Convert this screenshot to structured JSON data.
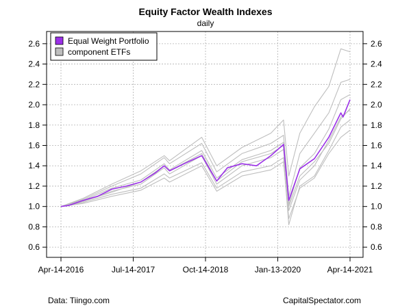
{
  "chart_data": {
    "type": "line",
    "title": "Equity Factor Wealth Indexes",
    "subtitle": "daily",
    "xlabel": "",
    "ylabel": "",
    "x_ticks": [
      "Apr-14-2016",
      "Jul-14-2017",
      "Oct-14-2018",
      "Jan-13-2020",
      "Apr-14-2021"
    ],
    "y_ticks": [
      0.6,
      0.8,
      1.0,
      1.2,
      1.4,
      1.6,
      1.8,
      2.0,
      2.2,
      2.4,
      2.6
    ],
    "y_tick_labels": [
      "0.6",
      "0.8",
      "1.0",
      "1.2",
      "1.4",
      "1.6",
      "1.8",
      "2.0",
      "2.2",
      "2.4",
      "2.6"
    ],
    "x_range": [
      "2016-04-14",
      "2021-04-14"
    ],
    "ylim": [
      0.5,
      2.72
    ],
    "grid": true,
    "dual_y_axis": true,
    "legend_position": "top-left",
    "legend": [
      {
        "label": "Equal Weight Portfolio",
        "color": "#9b30e8"
      },
      {
        "label": "component ETFs",
        "color": "#bebebe"
      }
    ],
    "series": [
      {
        "name": "Equal Weight Portfolio",
        "color": "#9b30e8",
        "x": [
          "2016-04-14",
          "2016-06-01",
          "2016-09-01",
          "2016-12-01",
          "2017-03-01",
          "2017-06-01",
          "2017-09-01",
          "2017-12-01",
          "2018-01-26",
          "2018-03-01",
          "2018-06-01",
          "2018-09-20",
          "2018-12-24",
          "2019-03-01",
          "2019-06-01",
          "2019-09-01",
          "2019-12-01",
          "2020-02-19",
          "2020-03-23",
          "2020-06-01",
          "2020-09-01",
          "2020-12-01",
          "2021-02-15",
          "2021-03-01",
          "2021-04-14"
        ],
        "values": [
          1.0,
          1.01,
          1.06,
          1.1,
          1.17,
          1.2,
          1.24,
          1.33,
          1.4,
          1.35,
          1.42,
          1.5,
          1.25,
          1.38,
          1.42,
          1.4,
          1.5,
          1.61,
          1.06,
          1.37,
          1.47,
          1.68,
          1.92,
          1.88,
          2.05
        ]
      },
      {
        "name": "",
        "color": "#bebebe",
        "x": [
          "2016-04-14",
          "2016-09-01",
          "2017-03-01",
          "2017-09-01",
          "2018-01-26",
          "2018-03-01",
          "2018-09-20",
          "2018-12-24",
          "2019-06-01",
          "2019-12-01",
          "2020-02-19",
          "2020-03-23",
          "2020-06-01",
          "2020-09-01",
          "2020-12-01",
          "2021-02-15",
          "2021-04-14"
        ],
        "values": [
          1.0,
          1.08,
          1.22,
          1.35,
          1.5,
          1.45,
          1.68,
          1.4,
          1.58,
          1.72,
          1.85,
          1.3,
          1.72,
          1.98,
          2.18,
          2.55,
          2.52
        ]
      },
      {
        "name": "",
        "color": "#bebebe",
        "x": [
          "2016-04-14",
          "2016-09-01",
          "2017-03-01",
          "2017-09-01",
          "2018-01-26",
          "2018-03-01",
          "2018-09-20",
          "2018-12-24",
          "2019-06-01",
          "2019-12-01",
          "2020-02-19",
          "2020-03-23",
          "2020-06-01",
          "2020-09-01",
          "2020-12-01",
          "2021-02-15",
          "2021-04-14"
        ],
        "values": [
          1.0,
          1.07,
          1.2,
          1.32,
          1.48,
          1.42,
          1.62,
          1.34,
          1.52,
          1.62,
          1.7,
          1.1,
          1.52,
          1.72,
          1.92,
          2.22,
          2.25
        ]
      },
      {
        "name": "",
        "color": "#bebebe",
        "x": [
          "2016-04-14",
          "2016-09-01",
          "2017-03-01",
          "2017-09-01",
          "2018-01-26",
          "2018-03-01",
          "2018-09-20",
          "2018-12-24",
          "2019-06-01",
          "2019-12-01",
          "2020-02-19",
          "2020-03-23",
          "2020-06-01",
          "2020-09-01",
          "2020-12-01",
          "2021-02-15",
          "2021-04-14"
        ],
        "values": [
          1.0,
          1.06,
          1.18,
          1.26,
          1.42,
          1.36,
          1.55,
          1.28,
          1.46,
          1.55,
          1.63,
          1.02,
          1.38,
          1.52,
          1.76,
          2.05,
          2.1
        ]
      },
      {
        "name": "",
        "color": "#bebebe",
        "x": [
          "2016-04-14",
          "2016-09-01",
          "2017-03-01",
          "2017-09-01",
          "2018-01-26",
          "2018-03-01",
          "2018-09-20",
          "2018-12-24",
          "2019-06-01",
          "2019-12-01",
          "2020-02-19",
          "2020-03-23",
          "2020-06-01",
          "2020-09-01",
          "2020-12-01",
          "2021-02-15",
          "2021-04-14"
        ],
        "values": [
          1.0,
          1.05,
          1.15,
          1.22,
          1.38,
          1.32,
          1.5,
          1.22,
          1.4,
          1.48,
          1.56,
          0.96,
          1.26,
          1.4,
          1.65,
          1.88,
          1.95
        ]
      },
      {
        "name": "",
        "color": "#bebebe",
        "x": [
          "2016-04-14",
          "2016-09-01",
          "2017-03-01",
          "2017-09-01",
          "2018-01-26",
          "2018-03-01",
          "2018-09-20",
          "2018-12-24",
          "2019-06-01",
          "2019-12-01",
          "2020-02-19",
          "2020-03-23",
          "2020-06-01",
          "2020-09-01",
          "2020-12-01",
          "2021-02-15",
          "2021-04-14"
        ],
        "values": [
          1.0,
          1.04,
          1.12,
          1.18,
          1.32,
          1.28,
          1.43,
          1.18,
          1.34,
          1.4,
          1.48,
          0.82,
          1.2,
          1.3,
          1.55,
          1.78,
          1.85
        ]
      },
      {
        "name": "",
        "color": "#bebebe",
        "x": [
          "2016-04-14",
          "2016-09-01",
          "2017-03-01",
          "2017-09-01",
          "2018-01-26",
          "2018-03-01",
          "2018-09-20",
          "2018-12-24",
          "2019-06-01",
          "2019-12-01",
          "2020-02-19",
          "2020-03-23",
          "2020-06-01",
          "2020-09-01",
          "2020-12-01",
          "2021-02-15",
          "2021-04-14"
        ],
        "values": [
          1.0,
          1.03,
          1.1,
          1.16,
          1.28,
          1.24,
          1.4,
          1.15,
          1.3,
          1.36,
          1.44,
          0.88,
          1.18,
          1.28,
          1.52,
          1.68,
          1.75
        ]
      },
      {
        "name": "",
        "color": "#bebebe",
        "x": [
          "2016-04-14",
          "2016-09-01",
          "2017-03-01",
          "2017-09-01",
          "2018-01-26",
          "2018-03-01",
          "2018-09-20",
          "2018-12-24",
          "2019-06-01",
          "2019-12-01",
          "2020-02-19",
          "2020-03-23",
          "2020-06-01",
          "2020-09-01",
          "2020-12-01",
          "2021-02-15",
          "2021-04-14"
        ],
        "values": [
          1.0,
          1.05,
          1.14,
          1.24,
          1.4,
          1.35,
          1.52,
          1.25,
          1.44,
          1.52,
          1.6,
          1.0,
          1.3,
          1.44,
          1.62,
          1.86,
          1.96
        ]
      }
    ]
  },
  "notes": {
    "source_left": "Data: Tiingo.com",
    "source_right": "CapitalSpectator.com"
  }
}
